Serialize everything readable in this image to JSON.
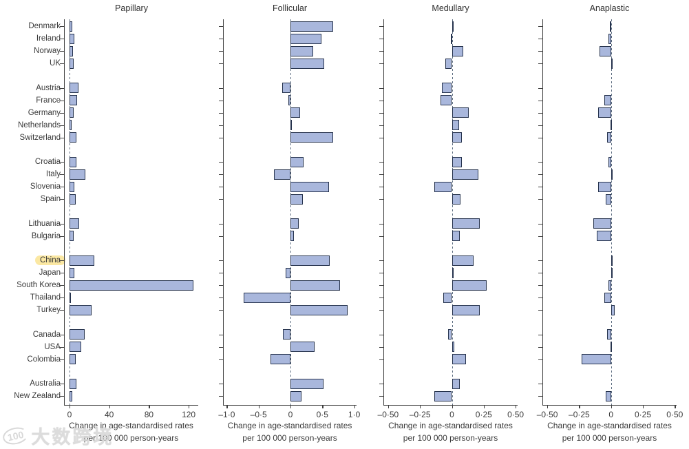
{
  "watermark": {
    "logo_text": "100",
    "brand_text": "大数跨境"
  },
  "colors": {
    "bar_fill": "#a9b7dc",
    "bar_border": "#26334d",
    "axis": "#3f3f3f",
    "text": "#3a3a3a",
    "zero_line": "#5c6c80",
    "highlight_pill": "#fbe8a3",
    "watermark": "#d2d2d2"
  },
  "highlighted_category": "China",
  "chart_data": {
    "type": "bar",
    "orientation": "horizontal",
    "grid": false,
    "legend": "none",
    "xlabel_line1": "Change in age-standardised rates",
    "xlabel_line2": "per 100 000 person-years",
    "categories": [
      "Denmark",
      "Ireland",
      "Norway",
      "UK",
      "Austria",
      "France",
      "Germany",
      "Netherlands",
      "Switzerland",
      "Croatia",
      "Italy",
      "Slovenia",
      "Spain",
      "Lithuania",
      "Bulgaria",
      "China",
      "Japan",
      "South Korea",
      "Thailand",
      "Turkey",
      "Canada",
      "USA",
      "Colombia",
      "Australia",
      "New Zealand"
    ],
    "category_group_sizes": [
      4,
      5,
      4,
      2,
      5,
      3,
      2
    ],
    "panels": [
      {
        "title": "Papillary",
        "tick_labels": [
          "0",
          "40",
          "80",
          "120"
        ],
        "tick_values": [
          0,
          40,
          80,
          120
        ],
        "xlim": [
          -5.5,
          129.7
        ],
        "values": [
          2.5,
          5,
          3.5,
          4,
          9,
          7.5,
          4.5,
          2,
          7,
          7,
          16,
          5,
          6,
          10,
          4,
          25,
          5,
          125,
          1,
          22,
          15,
          12,
          6,
          7,
          2.5
        ]
      },
      {
        "title": "Follicular",
        "tick_labels": [
          "–1·0",
          "–0·5",
          "0",
          "0·5",
          "1·0"
        ],
        "tick_values": [
          -1,
          -0.5,
          0,
          0.5,
          1
        ],
        "xlim": [
          -1.06,
          1.04
        ],
        "values": [
          0.67,
          0.49,
          0.36,
          0.53,
          -0.13,
          -0.03,
          0.15,
          0.02,
          0.67,
          0.2,
          -0.26,
          0.6,
          0.19,
          0.13,
          0.05,
          0.62,
          -0.08,
          0.78,
          -0.73,
          0.9,
          -0.12,
          0.38,
          -0.31,
          0.52,
          0.17
        ]
      },
      {
        "title": "Medullary",
        "tick_labels": [
          "–0·50",
          "–0·25",
          "0",
          "0·25",
          "0·50"
        ],
        "tick_values": [
          -0.5,
          -0.25,
          0,
          0.25,
          0.5
        ],
        "xlim": [
          -0.54,
          0.52
        ],
        "values": [
          0.005,
          -0.01,
          0.09,
          -0.05,
          -0.08,
          -0.09,
          0.13,
          0.055,
          0.08,
          0.08,
          0.21,
          -0.14,
          0.07,
          0.22,
          0.06,
          0.17,
          0.01,
          0.27,
          -0.065,
          0.22,
          -0.03,
          0.02,
          0.11,
          0.06,
          -0.14
        ]
      },
      {
        "title": "Anaplastic",
        "tick_labels": [
          "–0·50",
          "–0·25",
          "0",
          "0·25",
          "0·50"
        ],
        "tick_values": [
          -0.5,
          -0.25,
          0,
          0.25,
          0.5
        ],
        "xlim": [
          -0.54,
          0.52
        ],
        "values": [
          -0.01,
          -0.02,
          -0.09,
          0.01,
          0,
          -0.05,
          -0.1,
          -0.005,
          -0.03,
          -0.02,
          0.005,
          -0.1,
          -0.04,
          -0.14,
          -0.11,
          0.01,
          0.005,
          -0.02,
          -0.05,
          0.03,
          -0.03,
          -0.005,
          -0.23,
          0,
          -0.04
        ]
      }
    ]
  }
}
